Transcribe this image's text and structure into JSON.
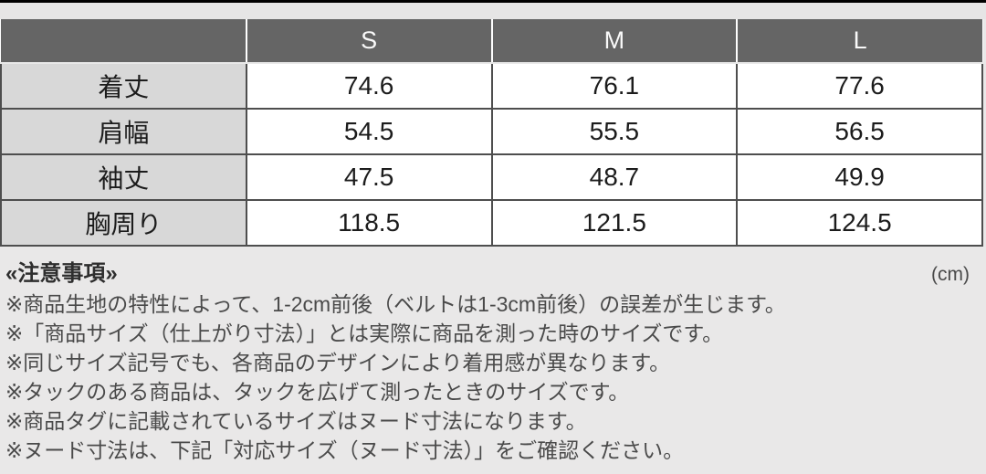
{
  "size_table": {
    "corner_label": "",
    "columns": [
      "S",
      "M",
      "L"
    ],
    "rows": [
      {
        "label": "着丈",
        "values": [
          "74.6",
          "76.1",
          "77.6"
        ]
      },
      {
        "label": "肩幅",
        "values": [
          "54.5",
          "55.5",
          "56.5"
        ]
      },
      {
        "label": "袖丈",
        "values": [
          "47.5",
          "48.7",
          "49.9"
        ]
      },
      {
        "label": "胸周り",
        "values": [
          "118.5",
          "121.5",
          "124.5"
        ]
      }
    ]
  },
  "notes": {
    "heading": "«注意事項»",
    "unit": "(cm)",
    "lines": [
      "※商品生地の特性によって、1-2cm前後（ベルトは1-3cm前後）の誤差が生じます。",
      "※「商品サイズ（仕上がり寸法）」とは実際に商品を測った時のサイズです。",
      "※同じサイズ記号でも、各商品のデザインにより着用感が異なります。",
      "※タックのある商品は、タックを広げて測ったときのサイズです。",
      "※商品タグに記載されているサイズはヌード寸法になります。",
      "※ヌード寸法は、下記「対応サイズ（ヌード寸法）」をご確認ください。"
    ]
  },
  "colors": {
    "page_bg": "#e9e8e8",
    "strip_bg": "#e6e5e5",
    "top_bar": "#000000",
    "header_bg": "#656565",
    "label_bg": "#d8d8d8",
    "border": "#4e4e4e"
  }
}
